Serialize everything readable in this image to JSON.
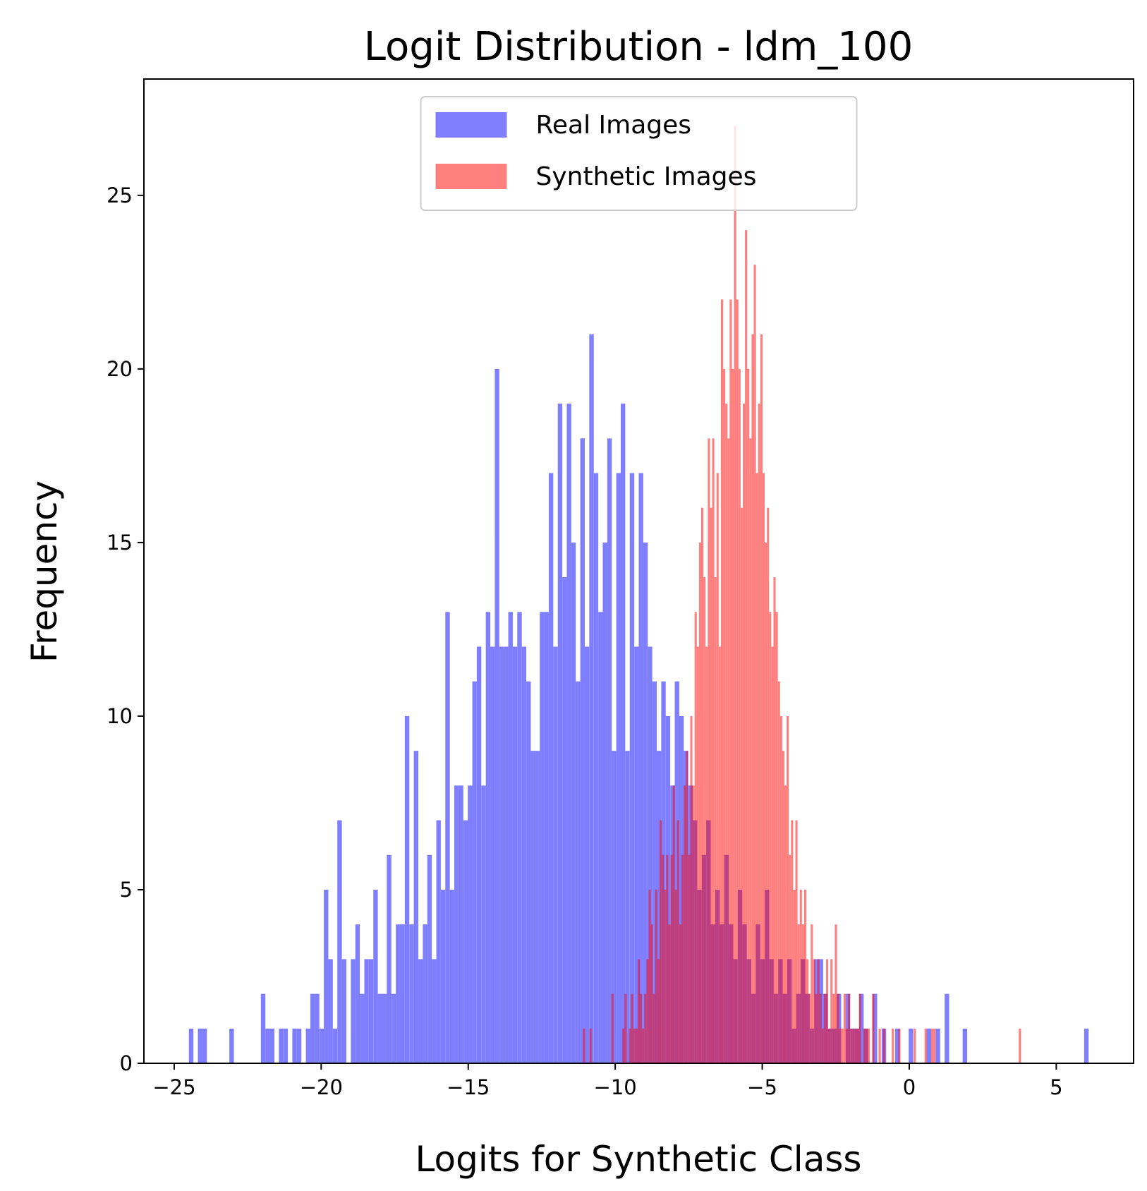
{
  "chart_data": {
    "type": "histogram",
    "title": "Logit Distribution - ldm_100",
    "xlabel": "Logits for Synthetic Class",
    "ylabel": "Frequency",
    "xlim": [
      -26.03,
      7.63
    ],
    "ylim": [
      0,
      28.35
    ],
    "xticks": [
      {
        "value": -25,
        "label": "−25"
      },
      {
        "value": -20,
        "label": "−20"
      },
      {
        "value": -15,
        "label": "−15"
      },
      {
        "value": -10,
        "label": "−10"
      },
      {
        "value": -5,
        "label": "−5"
      },
      0,
      5
    ],
    "yticks": [
      0,
      5,
      10,
      15,
      20,
      25
    ],
    "grid": false,
    "legend": "upper center",
    "alpha": 0.5,
    "series": [
      {
        "name": "Real Images",
        "color": "#0000ff",
        "bins": [
          -24.5,
          -24.347,
          -24.194,
          -24.041,
          -23.888,
          -23.735,
          -23.582,
          -23.429,
          -23.276,
          -23.123,
          -22.97,
          -22.817,
          -22.664,
          -22.511,
          -22.358,
          -22.205,
          -22.052,
          -21.899,
          -21.746,
          -21.593,
          -21.44,
          -21.287,
          -21.134,
          -20.981,
          -20.828,
          -20.675,
          -20.522,
          -20.369,
          -20.216,
          -20.063,
          -19.91,
          -19.757,
          -19.604,
          -19.451,
          -19.298,
          -19.145,
          -18.992,
          -18.839,
          -18.686,
          -18.533,
          -18.38,
          -18.227,
          -18.074,
          -17.921,
          -17.768,
          -17.615,
          -17.462,
          -17.309,
          -17.156,
          -17.003,
          -16.85,
          -16.697,
          -16.544,
          -16.391,
          -16.238,
          -16.085,
          -15.932,
          -15.779,
          -15.626,
          -15.473,
          -15.32,
          -15.167,
          -15.014,
          -14.861,
          -14.708,
          -14.555,
          -14.402,
          -14.249,
          -14.096,
          -13.943,
          -13.79,
          -13.637,
          -13.484,
          -13.331,
          -13.178,
          -13.025,
          -12.872,
          -12.719,
          -12.566,
          -12.413,
          -12.26,
          -12.107,
          -11.954,
          -11.801,
          -11.648,
          -11.495,
          -11.342,
          -11.189,
          -11.036,
          -10.883,
          -10.73,
          -10.577,
          -10.424,
          -10.271,
          -10.118,
          -9.965,
          -9.812,
          -9.659,
          -9.506,
          -9.353,
          -9.2,
          -9.047,
          -8.894,
          -8.741,
          -8.588,
          -8.435,
          -8.282,
          -8.129,
          -7.976,
          -7.823,
          -7.67,
          -7.517,
          -7.364,
          -7.211,
          -7.058,
          -6.905,
          -6.752,
          -6.599,
          -6.446,
          -6.293,
          -6.14,
          -5.987,
          -5.834,
          -5.681,
          -5.528,
          -5.375,
          -5.222,
          -5.069,
          -4.916,
          -4.763,
          -4.61,
          -4.457,
          -4.304,
          -4.151,
          -3.998,
          -3.845,
          -3.692,
          -3.539,
          -3.386,
          -3.233,
          -3.08,
          -2.927,
          -2.774,
          -2.621,
          -2.468,
          -2.315,
          -2.162,
          -2.009,
          -1.856,
          -1.703,
          -1.55,
          -1.397,
          -1.244,
          -1.091,
          -0.938,
          -0.785,
          -0.632,
          -0.479,
          -0.326,
          -0.173,
          -0.02,
          0.133,
          0.286,
          0.439,
          0.592,
          0.745,
          0.898,
          1.051,
          1.204,
          1.357,
          1.51,
          1.663,
          1.816,
          1.969,
          2.122,
          2.275,
          2.428,
          2.581,
          2.734,
          2.887,
          3.04,
          3.193,
          3.346,
          3.499,
          3.652,
          3.805,
          3.958,
          4.111,
          4.264,
          4.417,
          4.57,
          4.723,
          4.876,
          5.029,
          5.182,
          5.335,
          5.488,
          5.641,
          5.794,
          5.947,
          6.1
        ],
        "values": [
          1,
          0,
          1,
          1,
          0,
          0,
          0,
          0,
          0,
          1,
          0,
          0,
          0,
          0,
          0,
          0,
          2,
          1,
          1,
          0,
          1,
          1,
          0,
          1,
          1,
          0,
          1,
          2,
          2,
          1,
          5,
          3,
          1,
          7,
          3,
          0,
          3,
          4,
          2,
          3,
          3,
          5,
          2,
          2,
          6,
          2,
          4,
          4,
          10,
          4,
          9,
          3,
          4,
          6,
          3,
          7,
          5,
          13,
          5,
          8,
          8,
          7,
          8,
          11,
          12,
          8,
          13,
          12,
          20,
          12,
          12,
          13,
          12,
          13,
          12,
          11,
          9,
          9,
          13,
          13,
          17,
          12,
          19,
          14,
          19,
          15,
          11,
          18,
          12,
          21,
          17,
          13,
          15,
          18,
          9,
          17,
          19,
          9,
          17,
          12,
          17,
          15,
          12,
          11,
          9,
          11,
          10,
          8,
          11,
          10,
          9,
          8,
          7,
          5,
          6,
          7,
          4,
          5,
          4,
          6,
          4,
          3,
          5,
          4,
          3,
          2,
          4,
          3,
          5,
          3,
          2,
          3,
          2,
          3,
          1,
          2,
          3,
          2,
          1,
          3,
          3,
          2,
          1,
          1,
          2,
          0,
          2,
          1,
          1,
          2,
          1,
          0,
          2,
          0,
          1,
          0,
          0,
          1,
          0,
          0,
          1,
          0,
          0,
          0,
          1,
          0,
          1,
          0,
          2,
          0,
          0,
          0,
          1,
          0,
          0,
          0,
          0,
          0,
          0,
          0,
          0,
          0,
          0,
          0,
          0,
          0,
          0,
          0,
          0,
          0,
          0,
          0,
          0,
          0,
          0,
          0,
          0,
          0,
          0,
          1
        ]
      },
      {
        "name": "Synthetic Images",
        "color": "#ff0000",
        "bins": [
          -11.1,
          -11.0255,
          -10.951,
          -10.8765,
          -10.802,
          -10.7275,
          -10.653,
          -10.5785,
          -10.504,
          -10.4295,
          -10.355,
          -10.2805,
          -10.206,
          -10.1315,
          -10.057,
          -9.9825,
          -9.908,
          -9.8335,
          -9.759,
          -9.6845,
          -9.61,
          -9.5355,
          -9.461,
          -9.3865,
          -9.312,
          -9.2375,
          -9.163,
          -9.0885,
          -9.014,
          -8.9395,
          -8.865,
          -8.7905,
          -8.716,
          -8.6415,
          -8.567,
          -8.4925,
          -8.418,
          -8.3435,
          -8.269,
          -8.1945,
          -8.12,
          -8.0455,
          -7.971,
          -7.8965,
          -7.822,
          -7.7475,
          -7.673,
          -7.5985,
          -7.524,
          -7.4495,
          -7.375,
          -7.3005,
          -7.226,
          -7.1515,
          -7.077,
          -7.0025,
          -6.928,
          -6.8535,
          -6.779,
          -6.7045,
          -6.63,
          -6.5555,
          -6.481,
          -6.4065,
          -6.332,
          -6.2575,
          -6.183,
          -6.1085,
          -6.034,
          -5.9595,
          -5.885,
          -5.8105,
          -5.736,
          -5.6615,
          -5.587,
          -5.5125,
          -5.438,
          -5.3635,
          -5.289,
          -5.2145,
          -5.14,
          -5.0655,
          -4.991,
          -4.9165,
          -4.842,
          -4.7675,
          -4.693,
          -4.6185,
          -4.544,
          -4.4695,
          -4.395,
          -4.3205,
          -4.246,
          -4.1715,
          -4.097,
          -4.0225,
          -3.948,
          -3.8735,
          -3.799,
          -3.7245,
          -3.65,
          -3.5755,
          -3.501,
          -3.4265,
          -3.352,
          -3.2775,
          -3.203,
          -3.1285,
          -3.054,
          -2.9795,
          -2.905,
          -2.8305,
          -2.756,
          -2.6815,
          -2.607,
          -2.5325,
          -2.458,
          -2.3835,
          -2.309,
          -2.2345,
          -2.16,
          -2.0855,
          -2.011,
          -1.9365,
          -1.862,
          -1.7875,
          -1.713,
          -1.6385,
          -1.564,
          -1.4895,
          -1.415,
          -1.3405,
          -1.266,
          -1.1915,
          -1.117,
          -1.0425,
          -0.968,
          -0.8935,
          -0.819,
          -0.7445,
          -0.67,
          -0.5955,
          -0.521,
          -0.4465,
          -0.372,
          -0.2975,
          -0.223,
          -0.1485,
          -0.074,
          0.0005,
          0.075,
          0.1495,
          0.224,
          0.2985,
          0.373,
          0.4475,
          0.522,
          0.5965,
          0.671,
          0.7455,
          0.82,
          0.8945,
          0.969,
          1.0435,
          1.118,
          1.1925,
          1.267,
          1.3415,
          1.416,
          1.4905,
          1.565,
          1.6395,
          1.714,
          1.7885,
          1.863,
          1.9375,
          2.012,
          2.0865,
          2.161,
          2.2355,
          2.31,
          2.3845,
          2.459,
          2.5335,
          2.608,
          2.6825,
          2.757,
          2.8315,
          2.906,
          2.9805,
          3.055,
          3.1295,
          3.204,
          3.2785,
          3.353,
          3.4275,
          3.502,
          3.5765,
          3.651,
          3.7255,
          3.8
        ],
        "values": [
          1,
          0,
          0,
          1,
          0,
          0,
          0,
          0,
          0,
          0,
          0,
          0,
          0,
          2,
          0,
          0,
          0,
          0,
          1,
          2,
          0,
          1,
          2,
          1,
          1,
          3,
          2,
          1,
          2,
          3,
          5,
          4,
          2,
          5,
          3,
          7,
          6,
          5,
          6,
          4,
          6,
          8,
          5,
          7,
          4,
          6,
          8,
          9,
          6,
          10,
          8,
          13,
          12,
          15,
          16,
          14,
          12,
          18,
          16,
          18,
          14,
          17,
          12,
          22,
          20,
          19,
          18,
          22,
          20,
          27,
          22,
          20,
          16,
          19,
          24,
          20,
          18,
          21,
          23,
          17,
          19,
          21,
          17,
          15,
          16,
          13,
          12,
          14,
          13,
          11,
          10,
          9,
          8,
          10,
          6,
          7,
          5,
          7,
          4,
          5,
          4,
          5,
          3,
          2,
          4,
          3,
          2,
          3,
          2,
          1,
          2,
          3,
          1,
          3,
          2,
          4,
          2,
          1,
          1,
          2,
          1,
          2,
          1,
          1,
          1,
          1,
          2,
          0,
          1,
          1,
          1,
          0,
          2,
          0,
          0,
          1,
          0,
          1,
          0,
          0,
          0,
          1,
          0,
          0,
          1,
          0,
          0,
          0,
          0,
          0,
          0,
          1,
          0,
          0,
          0,
          0,
          1,
          0,
          0,
          1,
          1,
          0,
          0,
          0,
          0,
          0,
          0,
          0,
          0,
          0,
          0,
          0,
          0,
          0,
          0,
          0,
          0,
          0,
          0,
          0,
          0,
          0,
          0,
          0,
          0,
          0,
          0,
          0,
          0,
          0,
          0,
          0,
          0,
          0,
          0,
          0,
          0,
          0,
          0,
          1
        ]
      }
    ]
  }
}
